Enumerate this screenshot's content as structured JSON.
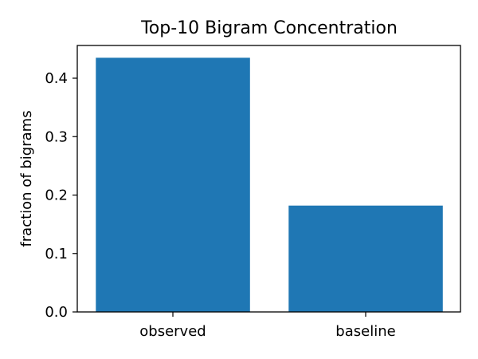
{
  "chart_data": {
    "type": "bar",
    "title": "Top-10 Bigram Concentration",
    "xlabel": "",
    "ylabel": "fraction of bigrams",
    "categories": [
      "observed",
      "baseline"
    ],
    "values": [
      0.435,
      0.182
    ],
    "ylim": [
      0,
      0.456
    ],
    "yticks": [
      0.0,
      0.1,
      0.2,
      0.3,
      0.4
    ],
    "ytick_labels": [
      "0.0",
      "0.1",
      "0.2",
      "0.3",
      "0.4"
    ],
    "grid": false,
    "legend": "none",
    "bar_color": "#1f77b4"
  }
}
